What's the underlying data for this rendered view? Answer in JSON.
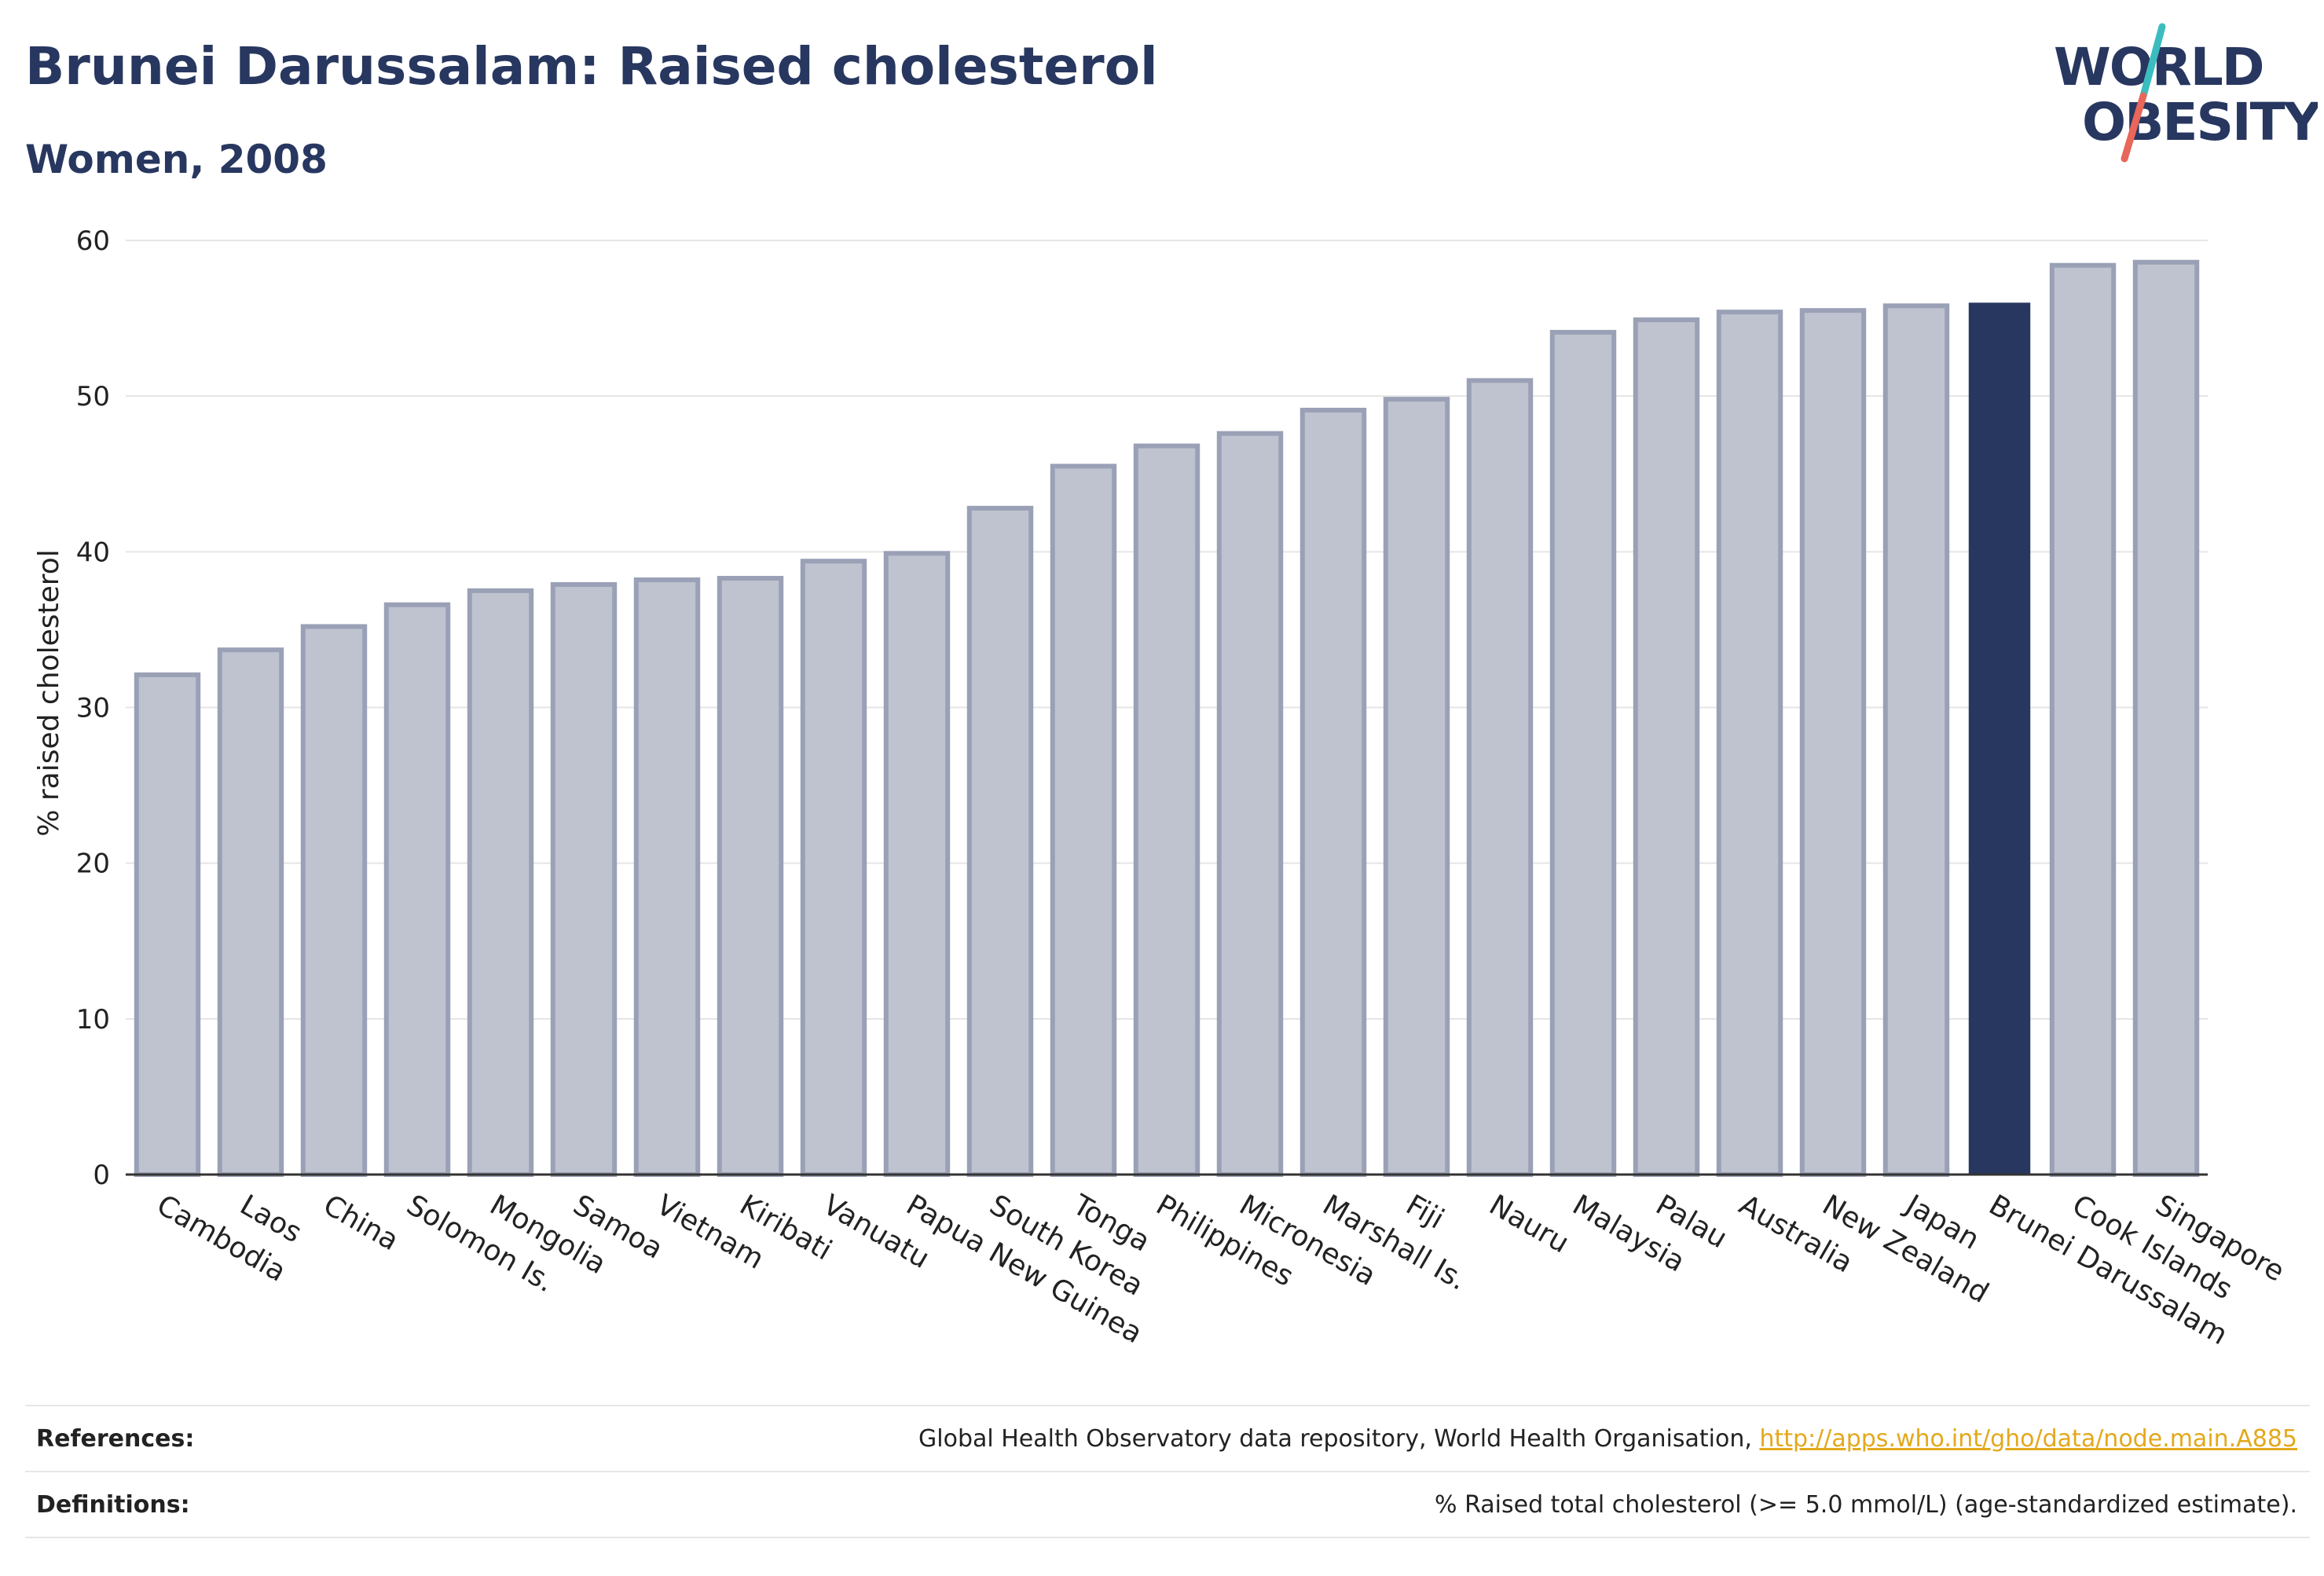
{
  "header": {
    "title": "Brunei Darussalam: Raised cholesterol",
    "subtitle": "Women, 2008"
  },
  "logo": {
    "line1": "WORLD",
    "line2": "OBESITY",
    "colors": {
      "text": "#283760",
      "slash_teal": "#3bbdbf",
      "slash_coral": "#e8665a"
    }
  },
  "chart_data": {
    "type": "bar",
    "title": "",
    "xlabel": "",
    "ylabel": "% raised cholesterol",
    "ylim": [
      0,
      60
    ],
    "yticks": [
      0,
      10,
      20,
      30,
      40,
      50,
      60
    ],
    "grid": true,
    "categories": [
      "Cambodia",
      "Laos",
      "China",
      "Solomon Is.",
      "Mongolia",
      "Samoa",
      "Vietnam",
      "Kiribati",
      "Vanuatu",
      "Papua New Guinea",
      "South Korea",
      "Tonga",
      "Philippines",
      "Micronesia",
      "Marshall Is.",
      "Fiji",
      "Nauru",
      "Malaysia",
      "Palau",
      "Australia",
      "New Zealand",
      "Japan",
      "Brunei Darussalam",
      "Cook Islands",
      "Singapore"
    ],
    "values": [
      32.1,
      33.7,
      35.2,
      36.6,
      37.5,
      37.9,
      38.2,
      38.3,
      39.4,
      39.9,
      42.8,
      45.5,
      46.8,
      47.6,
      49.1,
      49.8,
      51.0,
      54.1,
      54.9,
      55.4,
      55.5,
      55.8,
      56.0,
      58.4,
      58.6
    ],
    "highlight": "Brunei Darussalam",
    "colors": {
      "bar": "#bfc3cf",
      "bar_border": "#9aa1b6",
      "highlight": "#283760"
    }
  },
  "footer": {
    "references_label": "References:",
    "references_text": "Global Health Observatory data repository, World Health Organisation, ",
    "references_link": "http://apps.who.int/gho/data/node.main.A885",
    "definitions_label": "Definitions:",
    "definitions_text": "% Raised total cholesterol (>= 5.0 mmol/L) (age-standardized estimate)."
  }
}
